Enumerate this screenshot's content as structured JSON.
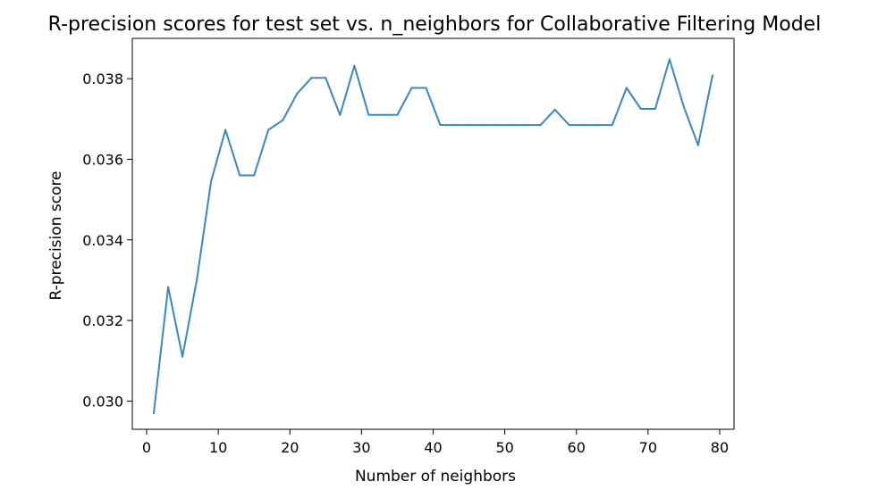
{
  "chart_data": {
    "type": "line",
    "title": "R-precision scores for test set vs. n_neighbors for Collaborative Filtering Model",
    "xlabel": "Number of neighbors",
    "ylabel": "R-precision score",
    "xlim": [
      -2,
      82
    ],
    "ylim": [
      0.0293,
      0.039
    ],
    "xticks": [
      0,
      10,
      20,
      30,
      40,
      50,
      60,
      70,
      80
    ],
    "yticks": [
      0.03,
      0.032,
      0.034,
      0.036,
      0.038
    ],
    "xtick_labels": [
      "0",
      "10",
      "20",
      "30",
      "40",
      "50",
      "60",
      "70",
      "80"
    ],
    "ytick_labels": [
      "0.030",
      "0.032",
      "0.034",
      "0.036",
      "0.038"
    ],
    "grid": false,
    "line_color": "#3a87c0",
    "series": [
      {
        "x": [
          1,
          3,
          5,
          7,
          9,
          11,
          13,
          15,
          17,
          19,
          21,
          23,
          25,
          27,
          29,
          31,
          33,
          35,
          37,
          39,
          41,
          43,
          45,
          47,
          49,
          51,
          53,
          55,
          57,
          59,
          61,
          63,
          65,
          67,
          69,
          71,
          73,
          75,
          77,
          79
        ],
        "values": [
          0.0297,
          0.03283,
          0.0311,
          0.033,
          0.03545,
          0.03673,
          0.0356,
          0.0356,
          0.03673,
          0.03697,
          0.03763,
          0.03802,
          0.03802,
          0.0371,
          0.03832,
          0.0371,
          0.0371,
          0.0371,
          0.03777,
          0.03777,
          0.03685,
          0.03685,
          0.03685,
          0.03685,
          0.03685,
          0.03685,
          0.03685,
          0.03685,
          0.03723,
          0.03685,
          0.03685,
          0.03685,
          0.03685,
          0.03777,
          0.03725,
          0.03725,
          0.03848,
          0.0373,
          0.03635,
          0.03808
        ]
      }
    ]
  }
}
